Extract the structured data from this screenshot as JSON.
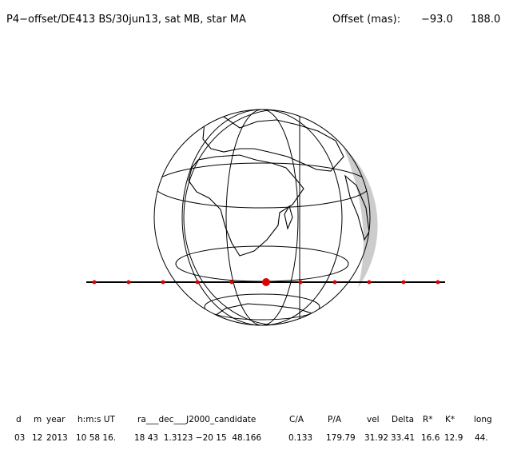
{
  "header": {
    "title": "P4−offset/DE413 BS/30jun13, sat MB, star MA",
    "offset_label": "Offset (mas):",
    "offset_x": "−93.0",
    "offset_y": "188.0"
  },
  "table": {
    "columns": [
      "d",
      "m",
      "year",
      "h:m:s UT",
      "ra___dec___J2000_candidate",
      "C/A",
      "P/A",
      "vel",
      "Delta",
      "R*",
      "K*",
      "long"
    ],
    "rows": [
      [
        "03",
        "12",
        "2013",
        "10 58 16.",
        "18 43  1.3123 −20 15  48.166",
        "0.133",
        "179.79",
        "31.92",
        "33.41",
        "16.6",
        "12.9",
        "44."
      ]
    ]
  }
}
